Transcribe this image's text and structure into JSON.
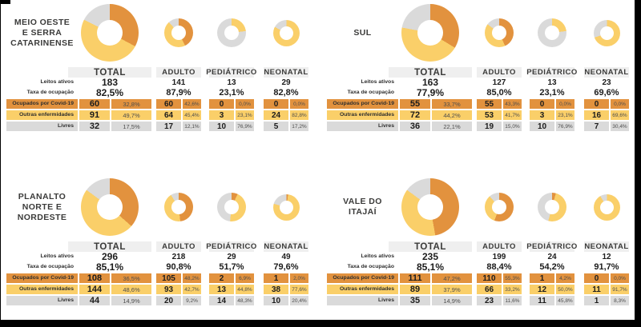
{
  "colors": {
    "covid": "#E2923E",
    "outras": "#FACF69",
    "livres": "#DADADA",
    "header_bg": "#EFEFEF",
    "frame": "#000000"
  },
  "labels": {
    "leitos": "Leitos ativos",
    "taxa": "Taxa de ocupação",
    "covid": "Ocupados por Covid-19",
    "outras": "Outras enfermidades",
    "livres": "Livres"
  },
  "chart_data": {
    "type": "pie",
    "segments": [
      "Ocupados por Covid-19",
      "Outras enfermidades",
      "Livres"
    ],
    "segment_colors": [
      "#E2923E",
      "#FACF69",
      "#DADADA"
    ],
    "regions": [
      {
        "name": "MEIO OESTE\nE SERRA\nCATARINENSE",
        "units": [
          {
            "label": "TOTAL",
            "leitos": "183",
            "taxa": "82,5%",
            "covid_n": "60",
            "covid_p": "32,8%",
            "outras_n": "91",
            "outras_p": "49,7%",
            "livres_n": "32",
            "livres_p": "17,5%",
            "pct": [
              32.8,
              49.7,
              17.5
            ]
          },
          {
            "label": "ADULTO",
            "leitos": "141",
            "taxa": "87,9%",
            "covid_n": "60",
            "covid_p": "42,6%",
            "outras_n": "64",
            "outras_p": "45,4%",
            "livres_n": "17",
            "livres_p": "12,1%",
            "pct": [
              42.6,
              45.4,
              12.1
            ]
          },
          {
            "label": "PEDIÁTRICO",
            "leitos": "13",
            "taxa": "23,1%",
            "covid_n": "0",
            "covid_p": "0,0%",
            "outras_n": "3",
            "outras_p": "23,1%",
            "livres_n": "10",
            "livres_p": "76,9%",
            "pct": [
              0,
              23.1,
              76.9
            ]
          },
          {
            "label": "NEONATAL",
            "leitos": "29",
            "taxa": "82,8%",
            "covid_n": "0",
            "covid_p": "0,0%",
            "outras_n": "24",
            "outras_p": "82,8%",
            "livres_n": "5",
            "livres_p": "17,2%",
            "pct": [
              0,
              82.8,
              17.2
            ]
          }
        ]
      },
      {
        "name": "SUL",
        "units": [
          {
            "label": "TOTAL",
            "leitos": "163",
            "taxa": "77,9%",
            "covid_n": "55",
            "covid_p": "33,7%",
            "outras_n": "72",
            "outras_p": "44,2%",
            "livres_n": "36",
            "livres_p": "22,1%",
            "pct": [
              33.7,
              44.2,
              22.1
            ]
          },
          {
            "label": "ADULTO",
            "leitos": "127",
            "taxa": "85,0%",
            "covid_n": "55",
            "covid_p": "43,3%",
            "outras_n": "53",
            "outras_p": "41,7%",
            "livres_n": "19",
            "livres_p": "15,0%",
            "pct": [
              43.3,
              41.7,
              15.0
            ]
          },
          {
            "label": "PEDIÁTRICO",
            "leitos": "13",
            "taxa": "23,1%",
            "covid_n": "0",
            "covid_p": "0,0%",
            "outras_n": "3",
            "outras_p": "23,1%",
            "livres_n": "10",
            "livres_p": "76,9%",
            "pct": [
              0,
              23.1,
              76.9
            ]
          },
          {
            "label": "NEONATAL",
            "leitos": "23",
            "taxa": "69,6%",
            "covid_n": "0",
            "covid_p": "0,0%",
            "outras_n": "16",
            "outras_p": "69,6%",
            "livres_n": "7",
            "livres_p": "30,4%",
            "pct": [
              0,
              69.6,
              30.4
            ]
          }
        ]
      },
      {
        "name": "PLANALTO\nNORTE E\nNORDESTE",
        "units": [
          {
            "label": "TOTAL",
            "leitos": "296",
            "taxa": "85,1%",
            "covid_n": "108",
            "covid_p": "36,5%",
            "outras_n": "144",
            "outras_p": "48,6%",
            "livres_n": "44",
            "livres_p": "14,9%",
            "pct": [
              36.5,
              48.6,
              14.9
            ]
          },
          {
            "label": "ADULTO",
            "leitos": "218",
            "taxa": "90,8%",
            "covid_n": "105",
            "covid_p": "48,2%",
            "outras_n": "93",
            "outras_p": "42,7%",
            "livres_n": "20",
            "livres_p": "9,2%",
            "pct": [
              48.2,
              42.7,
              9.2
            ]
          },
          {
            "label": "PEDIÁTRICO",
            "leitos": "29",
            "taxa": "51,7%",
            "covid_n": "2",
            "covid_p": "6,9%",
            "outras_n": "13",
            "outras_p": "44,8%",
            "livres_n": "14",
            "livres_p": "48,3%",
            "pct": [
              6.9,
              44.8,
              48.3
            ]
          },
          {
            "label": "NEONATAL",
            "leitos": "49",
            "taxa": "79,6%",
            "covid_n": "1",
            "covid_p": "2,0%",
            "outras_n": "38",
            "outras_p": "77,6%",
            "livres_n": "10",
            "livres_p": "20,4%",
            "pct": [
              2.0,
              77.6,
              20.4
            ]
          }
        ]
      },
      {
        "name": "VALE DO\nITAJAÍ",
        "units": [
          {
            "label": "TOTAL",
            "leitos": "235",
            "taxa": "85,1%",
            "covid_n": "111",
            "covid_p": "47,2%",
            "outras_n": "89",
            "outras_p": "37,9%",
            "livres_n": "35",
            "livres_p": "14,9%",
            "pct": [
              47.2,
              37.9,
              14.9
            ]
          },
          {
            "label": "ADULTO",
            "leitos": "199",
            "taxa": "88,4%",
            "covid_n": "110",
            "covid_p": "55,3%",
            "outras_n": "66",
            "outras_p": "33,2%",
            "livres_n": "23",
            "livres_p": "11,6%",
            "pct": [
              55.3,
              33.2,
              11.6
            ]
          },
          {
            "label": "PEDIÁTRICO",
            "leitos": "24",
            "taxa": "54,2%",
            "covid_n": "1",
            "covid_p": "4,2%",
            "outras_n": "12",
            "outras_p": "50,0%",
            "livres_n": "11",
            "livres_p": "45,8%",
            "pct": [
              4.2,
              50.0,
              45.8
            ]
          },
          {
            "label": "NEONATAL",
            "leitos": "12",
            "taxa": "91,7%",
            "covid_n": "0",
            "covid_p": "0,0%",
            "outras_n": "11",
            "outras_p": "91,7%",
            "livres_n": "1",
            "livres_p": "8,3%",
            "pct": [
              0,
              91.7,
              8.3
            ]
          }
        ]
      }
    ]
  }
}
